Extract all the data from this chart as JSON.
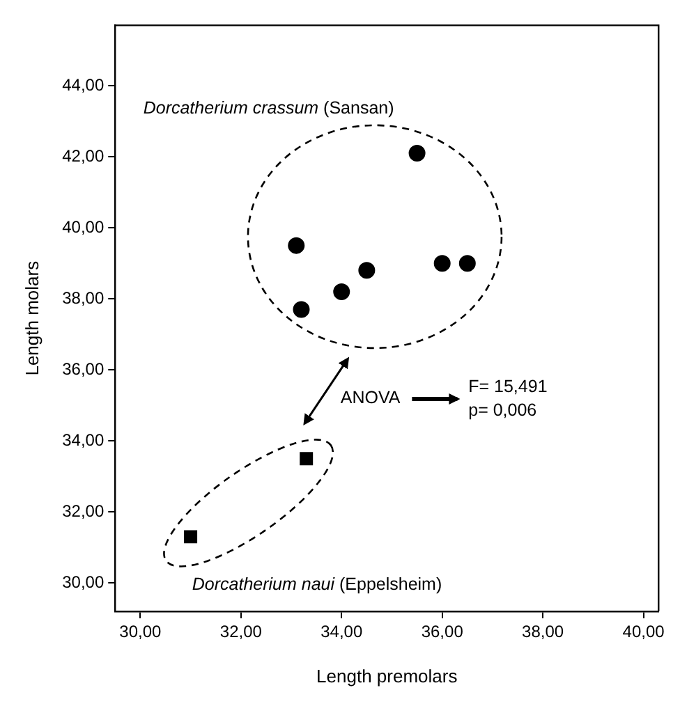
{
  "chart_data": {
    "type": "scatter",
    "xlabel": "Length premolars",
    "ylabel": "Length molars",
    "xlim": [
      29.5,
      40.3
    ],
    "ylim": [
      29.2,
      45.7
    ],
    "xticks": [
      {
        "value": 30,
        "label": "30,00"
      },
      {
        "value": 32,
        "label": "32,00"
      },
      {
        "value": 34,
        "label": "34,00"
      },
      {
        "value": 36,
        "label": "36,00"
      },
      {
        "value": 38,
        "label": "38,00"
      },
      {
        "value": 40,
        "label": "40,00"
      }
    ],
    "yticks": [
      {
        "value": 30,
        "label": "30,00"
      },
      {
        "value": 32,
        "label": "32,00"
      },
      {
        "value": 34,
        "label": "34,00"
      },
      {
        "value": 36,
        "label": "36,00"
      },
      {
        "value": 38,
        "label": "38,00"
      },
      {
        "value": 40,
        "label": "40,00"
      },
      {
        "value": 42,
        "label": "42,00"
      },
      {
        "value": 44,
        "label": "44,00"
      }
    ],
    "grid": false,
    "legend": false,
    "series": [
      {
        "name": "Dorcatherium crassum (Sansan)",
        "color": "#000000",
        "marker": "circle",
        "x": [
          35.5,
          33.1,
          33.2,
          34.0,
          34.5,
          36.0,
          36.5
        ],
        "values": [
          42.1,
          39.5,
          37.7,
          38.2,
          38.8,
          39.0,
          39.0
        ]
      },
      {
        "name": "Dorcatherium naui (Eppelsheim)",
        "color": "#000000",
        "marker": "square",
        "x": [
          33.3,
          31.0
        ],
        "values": [
          33.5,
          31.3
        ]
      }
    ],
    "annotations": [
      "ANOVA",
      "F= 15,491",
      "p= 0,006"
    ]
  }
}
